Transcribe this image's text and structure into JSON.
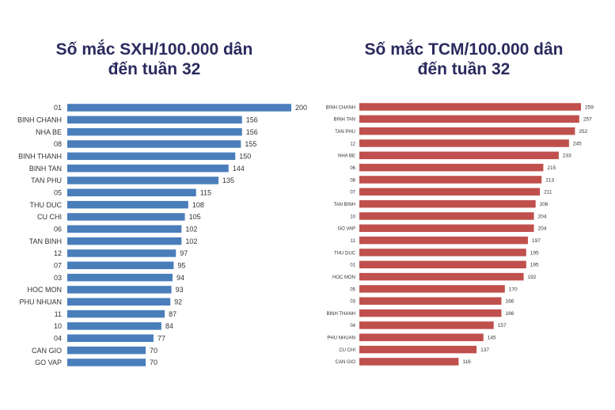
{
  "chart_data": [
    {
      "type": "bar",
      "orientation": "horizontal",
      "title_line1": "Số mắc SXH/100.000 dân",
      "title_line2": "đến tuần 32",
      "color": "#4a7ebb",
      "categories": [
        "01",
        "BINH CHANH",
        "NHA BE",
        "08",
        "BINH THANH",
        "BINH TAN",
        "TAN PHU",
        "05",
        "THU DUC",
        "CU CHI",
        "06",
        "TAN BINH",
        "12",
        "07",
        "03",
        "HOC MON",
        "PHU NHUAN",
        "11",
        "10",
        "04",
        "CAN GIO",
        "GO VAP"
      ],
      "values": [
        200,
        156,
        156,
        155,
        150,
        144,
        135,
        115,
        108,
        105,
        102,
        102,
        97,
        95,
        94,
        93,
        92,
        87,
        84,
        77,
        70,
        70
      ],
      "xlim": [
        0,
        200
      ]
    },
    {
      "type": "bar",
      "orientation": "horizontal",
      "title_line1": "Số mắc TCM/100.000 dân",
      "title_line2": "đến tuần 32",
      "color": "#c0504d",
      "categories": [
        "BINH CHANH",
        "BINH TAN",
        "TAN PHU",
        "12",
        "NHA BE",
        "06",
        "08",
        "07",
        "TAN BINH",
        "10",
        "GO VAP",
        "11",
        "THU DUC",
        "01",
        "HOC MON",
        "05",
        "03",
        "BINH THANH",
        "04",
        "PHU NHUAN",
        "CU CHI",
        "CAN GIO"
      ],
      "values": [
        259,
        257,
        252,
        245,
        233,
        215,
        213,
        211,
        206,
        204,
        204,
        197,
        195,
        195,
        192,
        170,
        166,
        166,
        157,
        145,
        137,
        116
      ],
      "xlim": [
        0,
        259
      ]
    }
  ]
}
